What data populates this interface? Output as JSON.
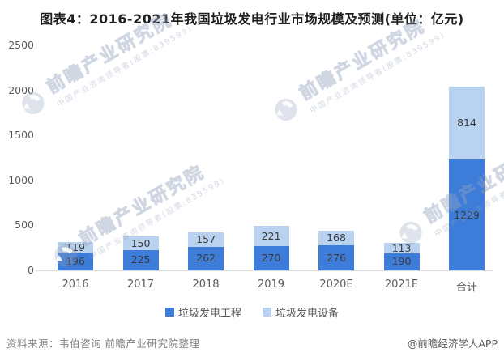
{
  "title": "图表4：2016-2021年我国垃圾发电行业市场规模及预测(单位：亿元)",
  "chart_data": {
    "type": "bar",
    "stacked": true,
    "title": "图表4：2016-2021年我国垃圾发电行业市场规模及预测(单位：亿元)",
    "unit": "亿元",
    "categories": [
      "2016",
      "2017",
      "2018",
      "2019",
      "2020E",
      "2021E",
      "合计"
    ],
    "series": [
      {
        "name": "垃圾发电工程",
        "color": "#3d7cd9",
        "values": [
          196,
          225,
          262,
          270,
          276,
          190,
          1229
        ]
      },
      {
        "name": "垃圾发电设备",
        "color": "#b8d2f0",
        "values": [
          119,
          150,
          157,
          221,
          168,
          113,
          814
        ]
      }
    ],
    "ylim": [
      0,
      2500
    ],
    "yticks": [
      0,
      500,
      1000,
      1500,
      2000,
      2500
    ],
    "grid": false,
    "legend_position": "bottom",
    "label_color": "#3b3b3b",
    "axis_color": "#d9d9d9"
  },
  "legend": {
    "items": [
      "垃圾发电工程",
      "垃圾发电设备"
    ]
  },
  "footer": {
    "source": "资料来源：韦伯咨询 前瞻产业研究院整理",
    "credit": "@前瞻经济学人APP"
  },
  "watermark": {
    "brand": "前瞻产业研究院",
    "tagline": "中国产业咨询领导者(股票:839599)"
  }
}
